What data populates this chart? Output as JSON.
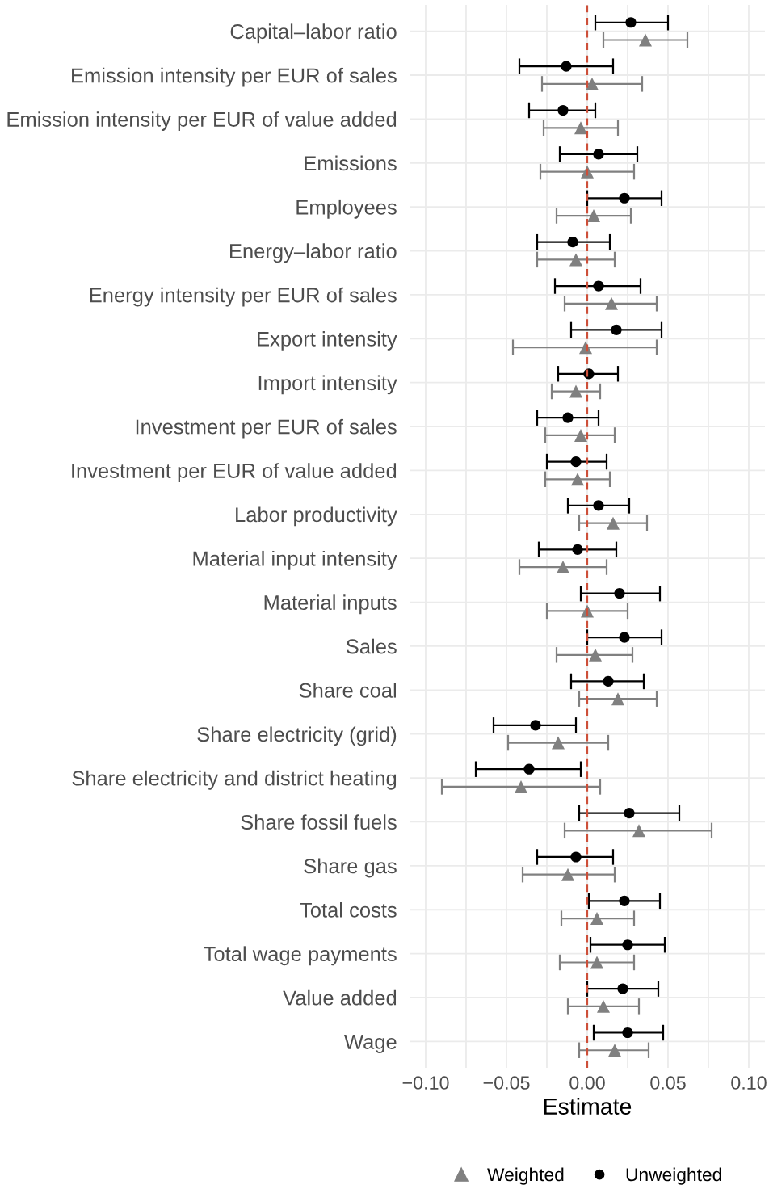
{
  "chart_data": {
    "type": "scatter",
    "orientation": "horizontal",
    "xlabel": "Estimate",
    "categories": [
      "Capital–labor ratio",
      "Emission intensity per EUR of sales",
      "Emission intensity per EUR of value added",
      "Emissions",
      "Employees",
      "Energy–labor ratio",
      "Energy intensity per EUR of sales",
      "Export intensity",
      "Import intensity",
      "Investment per EUR of sales",
      "Investment per EUR of value added",
      "Labor productivity",
      "Material input intensity",
      "Material inputs",
      "Sales",
      "Share coal",
      "Share electricity (grid)",
      "Share electricity and district heating",
      "Share fossil fuels",
      "Share gas",
      "Total costs",
      "Total wage payments",
      "Value added",
      "Wage"
    ],
    "series": [
      {
        "name": "Weighted",
        "color": "#808080",
        "marker": "triangle",
        "values": [
          0.036,
          0.003,
          -0.004,
          0.0,
          0.004,
          -0.007,
          0.015,
          -0.001,
          -0.007,
          -0.004,
          -0.006,
          0.016,
          -0.015,
          0.0,
          0.005,
          0.019,
          -0.018,
          -0.041,
          0.032,
          -0.012,
          0.006,
          0.006,
          0.01,
          0.017
        ],
        "errors": [
          [
            0.01,
            0.062
          ],
          [
            -0.028,
            0.034
          ],
          [
            -0.027,
            0.019
          ],
          [
            -0.029,
            0.029
          ],
          [
            -0.019,
            0.027
          ],
          [
            -0.031,
            0.017
          ],
          [
            -0.014,
            0.043
          ],
          [
            -0.046,
            0.043
          ],
          [
            -0.022,
            0.008
          ],
          [
            -0.026,
            0.017
          ],
          [
            -0.026,
            0.014
          ],
          [
            -0.005,
            0.037
          ],
          [
            -0.042,
            0.012
          ],
          [
            -0.025,
            0.025
          ],
          [
            -0.019,
            0.028
          ],
          [
            -0.005,
            0.043
          ],
          [
            -0.049,
            0.013
          ],
          [
            -0.09,
            0.008
          ],
          [
            -0.014,
            0.077
          ],
          [
            -0.04,
            0.017
          ],
          [
            -0.016,
            0.029
          ],
          [
            -0.017,
            0.029
          ],
          [
            -0.012,
            0.032
          ],
          [
            -0.005,
            0.038
          ]
        ]
      },
      {
        "name": "Unweighted",
        "color": "#000000",
        "marker": "circle",
        "values": [
          0.027,
          -0.013,
          -0.015,
          0.007,
          0.023,
          -0.009,
          0.007,
          0.018,
          0.001,
          -0.012,
          -0.007,
          0.007,
          -0.006,
          0.02,
          0.023,
          0.013,
          -0.032,
          -0.036,
          0.026,
          -0.007,
          0.023,
          0.025,
          0.022,
          0.025
        ],
        "errors": [
          [
            0.005,
            0.05
          ],
          [
            -0.042,
            0.016
          ],
          [
            -0.036,
            0.005
          ],
          [
            -0.017,
            0.031
          ],
          [
            0.0,
            0.046
          ],
          [
            -0.031,
            0.014
          ],
          [
            -0.02,
            0.033
          ],
          [
            -0.01,
            0.046
          ],
          [
            -0.018,
            0.019
          ],
          [
            -0.031,
            0.007
          ],
          [
            -0.025,
            0.012
          ],
          [
            -0.012,
            0.026
          ],
          [
            -0.03,
            0.018
          ],
          [
            -0.004,
            0.045
          ],
          [
            0.0,
            0.046
          ],
          [
            -0.01,
            0.035
          ],
          [
            -0.058,
            -0.007
          ],
          [
            -0.069,
            -0.004
          ],
          [
            -0.005,
            0.057
          ],
          [
            -0.031,
            0.016
          ],
          [
            0.001,
            0.045
          ],
          [
            0.002,
            0.048
          ],
          [
            0.0,
            0.044
          ],
          [
            0.004,
            0.047
          ]
        ]
      }
    ],
    "xlim": [
      -0.11,
      0.11
    ],
    "xticks": [
      {
        "value": -0.1,
        "label": "−0.10"
      },
      {
        "value": -0.075,
        "label": null
      },
      {
        "value": -0.05,
        "label": "−0.05"
      },
      {
        "value": -0.025,
        "label": null
      },
      {
        "value": 0,
        "label": "0.00"
      },
      {
        "value": 0.025,
        "label": null
      },
      {
        "value": 0.05,
        "label": "0.05"
      },
      {
        "value": 0.075,
        "label": null
      },
      {
        "value": 0.1,
        "label": "0.10"
      }
    ],
    "ref_lines": [
      {
        "axis": "x",
        "value": 0,
        "color": "#cd4f39",
        "line_style": "dashed"
      }
    ],
    "grid": true,
    "legend": "bottom"
  }
}
